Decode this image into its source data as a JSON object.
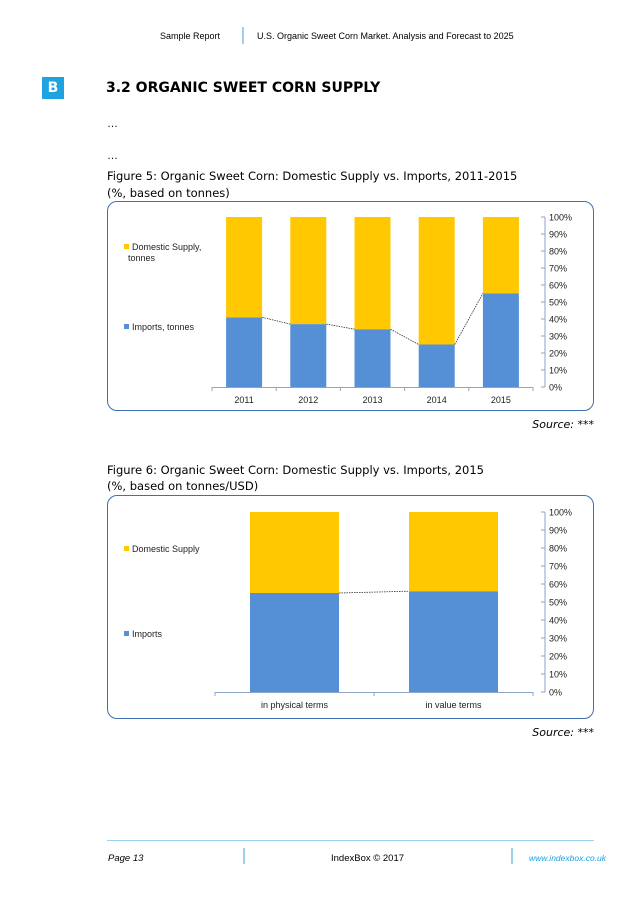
{
  "header": {
    "left": "Sample Report",
    "right": "U.S. Organic Sweet Corn Market. Analysis and Forecast to 2025"
  },
  "logo_letter": "B",
  "section_title": "3.2 ORGANIC SWEET CORN SUPPLY",
  "ellipsis1": "…",
  "ellipsis2": "…",
  "figure5": {
    "title": "Figure 5: Organic Sweet Corn: Domestic Supply vs. Imports, 2011-2015",
    "subtitle": "(%, based on tonnes)",
    "source_label": "Source:",
    "source_value": "***"
  },
  "figure6": {
    "title": "Figure 6: Organic Sweet Corn: Domestic Supply vs. Imports, 2015",
    "subtitle": "(%, based on tonnes/USD)",
    "source_label": "Source:",
    "source_value": "***"
  },
  "footer": {
    "page": "Page 13",
    "center": "IndexBox © 2017",
    "url": "www.indexbox.co.uk"
  },
  "colors": {
    "imports": "#5590d6",
    "domestic": "#ffc800",
    "accent": "#1ea3e0",
    "frame": "#3e6fb0"
  },
  "chart_data": [
    {
      "type": "bar",
      "stacked": true,
      "categories": [
        "2011",
        "2012",
        "2013",
        "2014",
        "2015"
      ],
      "series": [
        {
          "name": "Imports, tonnes",
          "values": [
            41,
            37,
            34,
            25,
            55
          ]
        },
        {
          "name": "Domestic Supply, tonnes",
          "values": [
            59,
            63,
            66,
            75,
            45
          ]
        }
      ],
      "ylim": [
        0,
        100
      ],
      "yticks": [
        "0%",
        "10%",
        "20%",
        "30%",
        "40%",
        "50%",
        "60%",
        "70%",
        "80%",
        "90%",
        "100%"
      ],
      "legend_position": "left",
      "grid": false
    },
    {
      "type": "bar",
      "stacked": true,
      "categories": [
        "in physical terms",
        "in value terms"
      ],
      "series": [
        {
          "name": "Imports",
          "values": [
            55,
            56
          ]
        },
        {
          "name": "Domestic Supply",
          "values": [
            45,
            44
          ]
        }
      ],
      "ylim": [
        0,
        100
      ],
      "yticks": [
        "0%",
        "10%",
        "20%",
        "30%",
        "40%",
        "50%",
        "60%",
        "70%",
        "80%",
        "90%",
        "100%"
      ],
      "legend_position": "left",
      "grid": false
    }
  ]
}
